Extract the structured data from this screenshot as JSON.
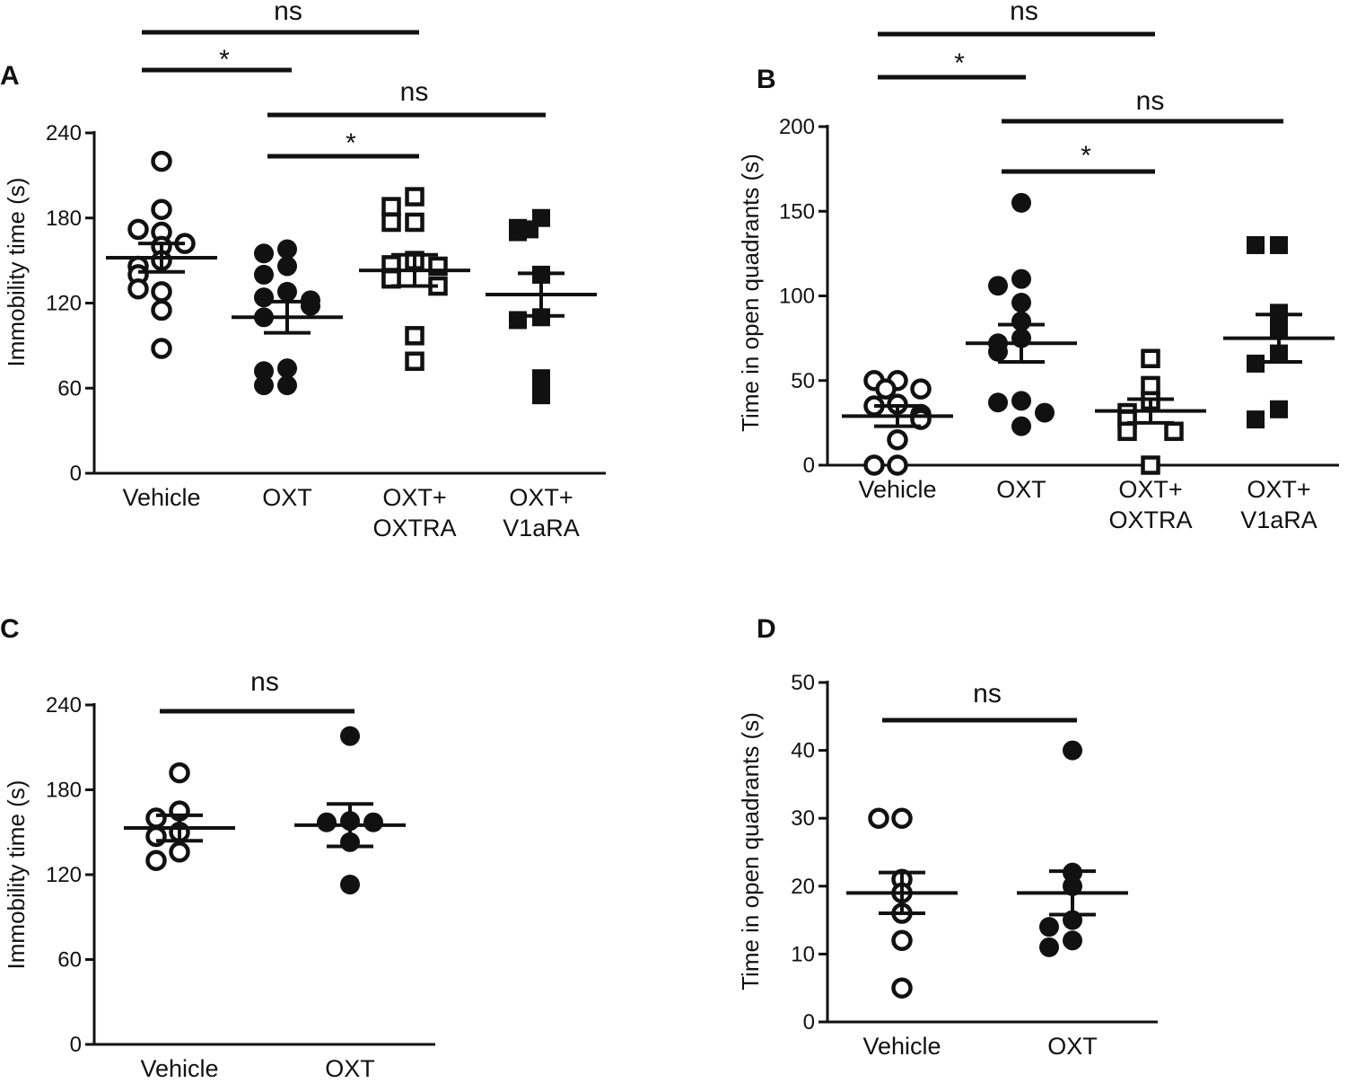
{
  "chart_data": [
    {
      "panel": "A",
      "type": "scatter",
      "ylabel": "Immobility time (s)",
      "ylim": [
        0,
        240
      ],
      "yticks": [
        0,
        60,
        120,
        180,
        240
      ],
      "categories": [
        {
          "lines": [
            "Vehicle"
          ],
          "marker": "open-circle",
          "mean": 152,
          "sem": 10,
          "values": [
            220,
            186,
            170,
            172,
            160,
            162,
            150,
            146,
            140,
            128,
            130,
            115,
            88
          ]
        },
        {
          "lines": [
            "OXT"
          ],
          "marker": "filled-circle",
          "mean": 110,
          "sem": 11,
          "values": [
            158,
            155,
            146,
            140,
            128,
            124,
            122,
            118,
            110,
            74,
            72,
            62,
            62
          ]
        },
        {
          "lines": [
            "OXT+",
            "OXTRA"
          ],
          "marker": "open-square",
          "mean": 143,
          "sem": 11,
          "values": [
            195,
            188,
            177,
            177,
            150,
            147,
            146,
            138,
            137,
            132,
            97,
            79
          ]
        },
        {
          "lines": [
            "OXT+",
            "V1aRA"
          ],
          "marker": "filled-square",
          "mean": 126,
          "sem": 15,
          "values": [
            180,
            173,
            170,
            172,
            140,
            110,
            108,
            67,
            55
          ]
        }
      ],
      "comparisons": [
        {
          "from": 0,
          "to": 2,
          "label": "ns"
        },
        {
          "from": 0,
          "to": 1,
          "label": "*"
        },
        {
          "from": 1,
          "to": 3,
          "label": "ns"
        },
        {
          "from": 1,
          "to": 2,
          "label": "*"
        }
      ]
    },
    {
      "panel": "B",
      "type": "scatter",
      "ylabel": "Time in open quadrants (s)",
      "ylim": [
        0,
        200
      ],
      "yticks": [
        0,
        50,
        100,
        150,
        200
      ],
      "categories": [
        {
          "lines": [
            "Vehicle"
          ],
          "marker": "open-circle",
          "mean": 29,
          "sem": 6,
          "values": [
            50,
            50,
            45,
            45,
            36,
            35,
            30,
            28,
            27,
            15,
            0,
            0
          ]
        },
        {
          "lines": [
            "OXT"
          ],
          "marker": "filled-circle",
          "mean": 72,
          "sem": 11,
          "values": [
            155,
            110,
            106,
            96,
            85,
            75,
            72,
            67,
            38,
            37,
            31,
            23
          ]
        },
        {
          "lines": [
            "OXT+",
            "OXTRA"
          ],
          "marker": "open-square",
          "mean": 32,
          "sem": 7,
          "values": [
            63,
            47,
            38,
            31,
            27,
            20,
            20,
            0
          ]
        },
        {
          "lines": [
            "OXT+",
            "V1aRA"
          ],
          "marker": "filled-square",
          "mean": 75,
          "sem": 14,
          "values": [
            130,
            130,
            90,
            80,
            66,
            60,
            33,
            27
          ]
        }
      ],
      "comparisons": [
        {
          "from": 0,
          "to": 2,
          "label": "ns"
        },
        {
          "from": 0,
          "to": 1,
          "label": "*"
        },
        {
          "from": 1,
          "to": 3,
          "label": "ns"
        },
        {
          "from": 1,
          "to": 2,
          "label": "*"
        }
      ]
    },
    {
      "panel": "C",
      "type": "scatter",
      "ylabel": "Immobility time (s)",
      "ylim": [
        0,
        240
      ],
      "yticks": [
        0,
        60,
        120,
        180,
        240
      ],
      "categories": [
        {
          "lines": [
            "Vehicle"
          ],
          "marker": "open-circle",
          "mean": 153,
          "sem": 9,
          "values": [
            192,
            165,
            160,
            150,
            147,
            136,
            130
          ]
        },
        {
          "lines": [
            "OXT"
          ],
          "marker": "filled-circle",
          "mean": 155,
          "sem": 15,
          "values": [
            218,
            158,
            157,
            157,
            143,
            113
          ]
        }
      ],
      "comparisons": [
        {
          "from": 0,
          "to": 1,
          "label": "ns"
        }
      ]
    },
    {
      "panel": "D",
      "type": "scatter",
      "ylabel": "Time in open quadrants (s)",
      "ylim": [
        0,
        50
      ],
      "yticks": [
        0,
        10,
        20,
        30,
        40,
        50
      ],
      "categories": [
        {
          "lines": [
            "Vehicle"
          ],
          "marker": "open-circle",
          "mean": 19,
          "sem": 3,
          "values": [
            30,
            30,
            21,
            19,
            16,
            12,
            5
          ]
        },
        {
          "lines": [
            "OXT"
          ],
          "marker": "filled-circle",
          "mean": 19,
          "sem": 3.2,
          "values": [
            40,
            22,
            20,
            15,
            14,
            12,
            11
          ]
        }
      ],
      "comparisons": [
        {
          "from": 0,
          "to": 1,
          "label": "ns"
        }
      ]
    }
  ]
}
